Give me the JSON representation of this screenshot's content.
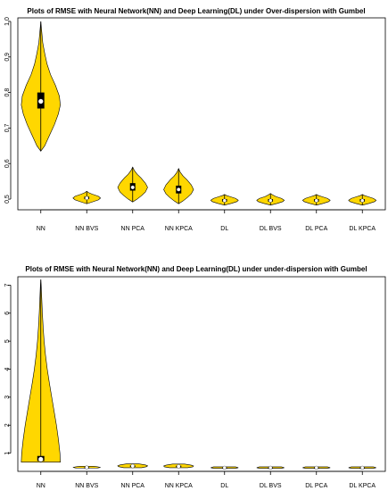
{
  "chart_data": [
    {
      "type": "violin",
      "title": "Plots of RMSE with Neural Network(NN) and Deep Learning(DL) under Over-dispersion with Gumbel",
      "xlabel": "",
      "ylabel": "",
      "ylim": [
        0.47,
        1.01
      ],
      "yticks": [
        0.5,
        0.6,
        0.7,
        0.8,
        0.9,
        1.0
      ],
      "ytick_labels": [
        "0.5",
        "0.6",
        "0.7",
        "0.8",
        "0.9",
        "1.0"
      ],
      "fill_color": "#FFD700",
      "categories": [
        "NN",
        "NN BVS",
        "NN PCA",
        "NN KPCA",
        "DL",
        "DL BVS",
        "DL PCA",
        "DL KPCA"
      ],
      "series": [
        {
          "min": 0.635,
          "q1": 0.755,
          "median": 0.775,
          "q3": 0.8,
          "max": 1.0,
          "width": 0.85,
          "profile": [
            [
              0.635,
              0.0
            ],
            [
              0.65,
              0.2
            ],
            [
              0.68,
              0.45
            ],
            [
              0.71,
              0.7
            ],
            [
              0.74,
              0.9
            ],
            [
              0.765,
              1.0
            ],
            [
              0.79,
              0.95
            ],
            [
              0.82,
              0.75
            ],
            [
              0.85,
              0.5
            ],
            [
              0.88,
              0.32
            ],
            [
              0.91,
              0.2
            ],
            [
              0.94,
              0.1
            ],
            [
              0.97,
              0.05
            ],
            [
              1.0,
              0.0
            ]
          ]
        },
        {
          "min": 0.487,
          "q1": 0.5,
          "median": 0.503,
          "q3": 0.507,
          "max": 0.522,
          "width": 0.6,
          "profile": [
            [
              0.487,
              0.0
            ],
            [
              0.492,
              0.4
            ],
            [
              0.498,
              0.85
            ],
            [
              0.503,
              1.0
            ],
            [
              0.508,
              0.85
            ],
            [
              0.514,
              0.4
            ],
            [
              0.518,
              0.15
            ],
            [
              0.522,
              0.0
            ]
          ]
        },
        {
          "min": 0.492,
          "q1": 0.524,
          "median": 0.533,
          "q3": 0.545,
          "max": 0.59,
          "width": 0.65,
          "profile": [
            [
              0.492,
              0.0
            ],
            [
              0.5,
              0.3
            ],
            [
              0.51,
              0.6
            ],
            [
              0.52,
              0.85
            ],
            [
              0.533,
              1.0
            ],
            [
              0.545,
              0.85
            ],
            [
              0.56,
              0.55
            ],
            [
              0.57,
              0.3
            ],
            [
              0.58,
              0.12
            ],
            [
              0.59,
              0.0
            ]
          ]
        },
        {
          "min": 0.487,
          "q1": 0.516,
          "median": 0.527,
          "q3": 0.538,
          "max": 0.586,
          "width": 0.65,
          "profile": [
            [
              0.487,
              0.0
            ],
            [
              0.495,
              0.3
            ],
            [
              0.505,
              0.6
            ],
            [
              0.515,
              0.85
            ],
            [
              0.527,
              1.0
            ],
            [
              0.54,
              0.85
            ],
            [
              0.555,
              0.55
            ],
            [
              0.565,
              0.3
            ],
            [
              0.575,
              0.12
            ],
            [
              0.586,
              0.0
            ]
          ]
        },
        {
          "min": 0.483,
          "q1": 0.493,
          "median": 0.496,
          "q3": 0.5,
          "max": 0.513,
          "width": 0.6,
          "profile": [
            [
              0.483,
              0.0
            ],
            [
              0.488,
              0.5
            ],
            [
              0.493,
              0.9
            ],
            [
              0.497,
              1.0
            ],
            [
              0.502,
              0.8
            ],
            [
              0.507,
              0.4
            ],
            [
              0.51,
              0.15
            ],
            [
              0.513,
              0.0
            ]
          ]
        },
        {
          "min": 0.483,
          "q1": 0.493,
          "median": 0.496,
          "q3": 0.5,
          "max": 0.516,
          "width": 0.6,
          "profile": [
            [
              0.483,
              0.0
            ],
            [
              0.488,
              0.5
            ],
            [
              0.493,
              0.9
            ],
            [
              0.497,
              1.0
            ],
            [
              0.502,
              0.8
            ],
            [
              0.507,
              0.4
            ],
            [
              0.512,
              0.15
            ],
            [
              0.516,
              0.0
            ]
          ]
        },
        {
          "min": 0.483,
          "q1": 0.493,
          "median": 0.496,
          "q3": 0.5,
          "max": 0.513,
          "width": 0.6,
          "profile": [
            [
              0.483,
              0.0
            ],
            [
              0.488,
              0.5
            ],
            [
              0.493,
              0.9
            ],
            [
              0.497,
              1.0
            ],
            [
              0.502,
              0.8
            ],
            [
              0.507,
              0.4
            ],
            [
              0.51,
              0.15
            ],
            [
              0.513,
              0.0
            ]
          ]
        },
        {
          "min": 0.483,
          "q1": 0.493,
          "median": 0.496,
          "q3": 0.5,
          "max": 0.513,
          "width": 0.6,
          "profile": [
            [
              0.483,
              0.0
            ],
            [
              0.488,
              0.5
            ],
            [
              0.493,
              0.9
            ],
            [
              0.497,
              1.0
            ],
            [
              0.502,
              0.8
            ],
            [
              0.507,
              0.4
            ],
            [
              0.51,
              0.15
            ],
            [
              0.513,
              0.0
            ]
          ]
        }
      ]
    },
    {
      "type": "violin",
      "title": "Plots of RMSE with Neural Network(NN) and Deep Learning(DL) under under-dispersion with Gumbel",
      "xlabel": "",
      "ylabel": "",
      "ylim": [
        0.35,
        7.3
      ],
      "yticks": [
        1,
        2,
        3,
        4,
        5,
        6,
        7
      ],
      "ytick_labels": [
        "1",
        "2",
        "3",
        "4",
        "5",
        "6",
        "7"
      ],
      "fill_color": "#FFD700",
      "categories": [
        "NN",
        "NN BVS",
        "NN PCA",
        "NN KPCA",
        "DL",
        "DL BVS",
        "DL PCA",
        "DL KPCA"
      ],
      "series": [
        {
          "min": 0.68,
          "q1": 0.72,
          "median": 0.78,
          "q3": 0.9,
          "max": 7.2,
          "width": 0.85,
          "profile": [
            [
              0.68,
              1.0
            ],
            [
              1.0,
              0.98
            ],
            [
              1.5,
              0.9
            ],
            [
              2.0,
              0.8
            ],
            [
              2.5,
              0.68
            ],
            [
              3.0,
              0.56
            ],
            [
              3.5,
              0.44
            ],
            [
              4.0,
              0.33
            ],
            [
              4.5,
              0.24
            ],
            [
              5.0,
              0.17
            ],
            [
              5.5,
              0.12
            ],
            [
              6.0,
              0.08
            ],
            [
              6.5,
              0.05
            ],
            [
              7.0,
              0.02
            ],
            [
              7.2,
              0.0
            ]
          ]
        },
        {
          "min": 0.47,
          "q1": 0.48,
          "median": 0.49,
          "q3": 0.5,
          "max": 0.53,
          "width": 0.6,
          "profile": [
            [
              0.47,
              0.8
            ],
            [
              0.49,
              1.0
            ],
            [
              0.51,
              0.8
            ],
            [
              0.53,
              0.5
            ]
          ]
        },
        {
          "min": 0.48,
          "q1": 0.52,
          "median": 0.54,
          "q3": 0.56,
          "max": 0.62,
          "width": 0.65,
          "profile": [
            [
              0.48,
              0.6
            ],
            [
              0.52,
              0.95
            ],
            [
              0.55,
              1.0
            ],
            [
              0.58,
              0.85
            ],
            [
              0.62,
              0.4
            ]
          ]
        },
        {
          "min": 0.48,
          "q1": 0.51,
          "median": 0.53,
          "q3": 0.55,
          "max": 0.61,
          "width": 0.65,
          "profile": [
            [
              0.48,
              0.6
            ],
            [
              0.51,
              0.95
            ],
            [
              0.54,
              1.0
            ],
            [
              0.57,
              0.85
            ],
            [
              0.61,
              0.4
            ]
          ]
        },
        {
          "min": 0.46,
          "q1": 0.47,
          "median": 0.48,
          "q3": 0.49,
          "max": 0.51,
          "width": 0.6,
          "profile": [
            [
              0.46,
              0.8
            ],
            [
              0.48,
              1.0
            ],
            [
              0.51,
              0.8
            ]
          ]
        },
        {
          "min": 0.46,
          "q1": 0.47,
          "median": 0.48,
          "q3": 0.49,
          "max": 0.51,
          "width": 0.6,
          "profile": [
            [
              0.46,
              0.8
            ],
            [
              0.48,
              1.0
            ],
            [
              0.51,
              0.8
            ]
          ]
        },
        {
          "min": 0.46,
          "q1": 0.47,
          "median": 0.48,
          "q3": 0.49,
          "max": 0.51,
          "width": 0.6,
          "profile": [
            [
              0.46,
              0.8
            ],
            [
              0.48,
              1.0
            ],
            [
              0.51,
              0.8
            ]
          ]
        },
        {
          "min": 0.46,
          "q1": 0.47,
          "median": 0.48,
          "q3": 0.49,
          "max": 0.51,
          "width": 0.6,
          "profile": [
            [
              0.46,
              0.8
            ],
            [
              0.48,
              1.0
            ],
            [
              0.51,
              0.8
            ]
          ]
        }
      ]
    }
  ]
}
